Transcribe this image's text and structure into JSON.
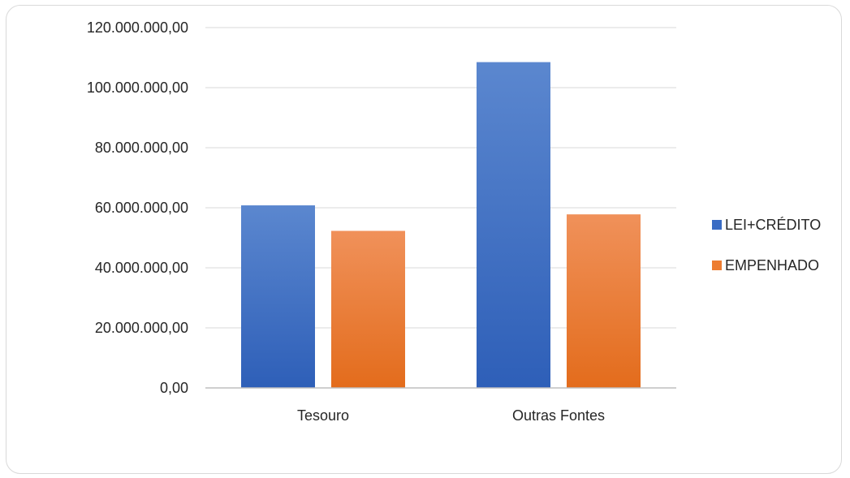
{
  "chart_data": {
    "type": "bar",
    "categories": [
      "Tesouro",
      "Outras Fontes"
    ],
    "series": [
      {
        "name": "LEI+CRÉDITO",
        "values": [
          60800000,
          108500000
        ]
      },
      {
        "name": "EMPENHADO",
        "values": [
          52300000,
          57800000
        ]
      }
    ],
    "ylim": [
      0,
      120000000
    ],
    "yticks": [
      0,
      20000000,
      40000000,
      60000000,
      80000000,
      100000000,
      120000000
    ],
    "ytick_labels": [
      "0,00",
      "20.000.000,00",
      "40.000.000,00",
      "60.000.000,00",
      "80.000.000,00",
      "100.000.000,00",
      "120.000.000,00"
    ],
    "title": "",
    "xlabel": "",
    "ylabel": "",
    "grid": true,
    "legend_position": "right",
    "colors": {
      "series": [
        {
          "top": "#5b87cf",
          "bottom": "#2e5fb8"
        },
        {
          "top": "#f0915a",
          "bottom": "#e36c1c"
        }
      ],
      "legend": [
        "#3a6cc4",
        "#ed7d31"
      ],
      "grid": "#d9d9d9",
      "axis": "#bfbfbf"
    }
  }
}
